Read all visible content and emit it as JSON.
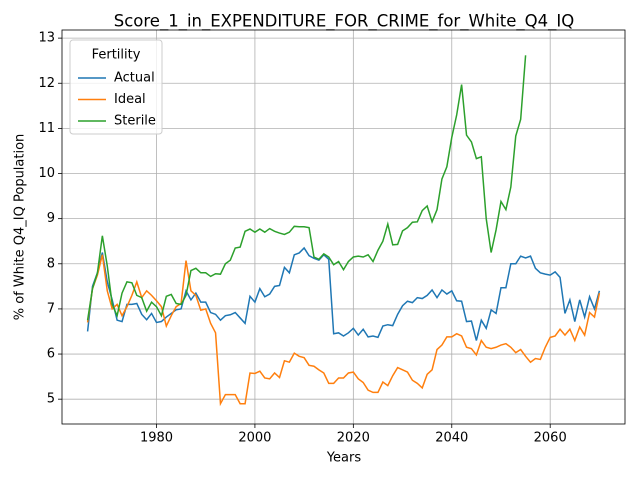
{
  "chart_data": {
    "type": "line",
    "title": "Score_1_in_EXPENDITURE_FOR_CRIME_for_White_Q4_IQ",
    "xlabel": "Years",
    "ylabel": "% of White Q4_IQ Population",
    "legend_title": "Fertility",
    "legend": "upper left",
    "grid": true,
    "xlim": [
      1960.8,
      2075.2
    ],
    "ylim": [
      4.45,
      13.18
    ],
    "xticks": [
      1980,
      2000,
      2020,
      2040,
      2060
    ],
    "yticks": [
      5,
      6,
      7,
      8,
      9,
      10,
      11,
      12,
      13
    ],
    "x": [
      1966,
      1967,
      1968,
      1969,
      1970,
      1971,
      1972,
      1973,
      1974,
      1975,
      1976,
      1977,
      1978,
      1979,
      1980,
      1981,
      1982,
      1983,
      1984,
      1985,
      1986,
      1987,
      1988,
      1989,
      1990,
      1991,
      1992,
      1993,
      1994,
      1995,
      1996,
      1997,
      1998,
      1999,
      2000,
      2001,
      2002,
      2003,
      2004,
      2005,
      2006,
      2007,
      2008,
      2009,
      2010,
      2011,
      2012,
      2013,
      2014,
      2015,
      2016,
      2017,
      2018,
      2019,
      2020,
      2021,
      2022,
      2023,
      2024,
      2025,
      2026,
      2027,
      2028,
      2029,
      2030,
      2031,
      2032,
      2033,
      2034,
      2035,
      2036,
      2037,
      2038,
      2039,
      2040,
      2041,
      2042,
      2043,
      2044,
      2045,
      2046,
      2047,
      2048,
      2049,
      2050,
      2051,
      2052,
      2053,
      2054,
      2055,
      2056,
      2057,
      2058,
      2059,
      2060,
      2061,
      2062,
      2063,
      2064,
      2065,
      2066,
      2067,
      2068,
      2069,
      2070
    ],
    "series": [
      {
        "name": "Actual",
        "color": "#1f77b4",
        "values": [
          6.5,
          7.5,
          7.8,
          8.25,
          7.6,
          7.2,
          6.75,
          6.72,
          7.1,
          7.1,
          7.12,
          6.88,
          6.76,
          6.9,
          6.7,
          6.72,
          6.82,
          6.9,
          6.98,
          7.0,
          7.4,
          7.2,
          7.35,
          7.15,
          7.15,
          6.92,
          6.88,
          6.75,
          6.85,
          6.87,
          6.92,
          6.8,
          6.68,
          7.28,
          7.15,
          7.45,
          7.27,
          7.33,
          7.5,
          7.52,
          7.92,
          7.8,
          8.2,
          8.24,
          8.35,
          8.18,
          8.12,
          8.08,
          8.2,
          8.1,
          6.45,
          6.47,
          6.4,
          6.47,
          6.57,
          6.42,
          6.55,
          6.38,
          6.4,
          6.37,
          6.62,
          6.65,
          6.63,
          6.88,
          7.07,
          7.17,
          7.14,
          7.25,
          7.23,
          7.3,
          7.42,
          7.25,
          7.42,
          7.33,
          7.4,
          7.18,
          7.17,
          6.72,
          6.73,
          6.3,
          6.75,
          6.57,
          6.98,
          6.9,
          7.47,
          7.47,
          8.0,
          8.0,
          8.17,
          8.13,
          8.17,
          7.9,
          7.8,
          7.77,
          7.75,
          7.82,
          7.7,
          6.9,
          7.2,
          6.72,
          7.2,
          6.82,
          7.27,
          7.0,
          7.4
        ]
      },
      {
        "name": "Ideal",
        "color": "#ff7f0e",
        "values": [
          6.7,
          7.45,
          7.75,
          8.2,
          7.4,
          7.0,
          7.1,
          6.85,
          7.05,
          7.3,
          7.6,
          7.25,
          7.4,
          7.3,
          7.18,
          7.05,
          6.62,
          6.85,
          7.05,
          7.12,
          8.07,
          7.4,
          7.3,
          6.97,
          7.0,
          6.68,
          6.47,
          4.9,
          5.1,
          5.1,
          5.1,
          4.9,
          4.9,
          5.58,
          5.57,
          5.62,
          5.47,
          5.45,
          5.58,
          5.48,
          5.85,
          5.82,
          6.02,
          5.95,
          5.92,
          5.75,
          5.73,
          5.65,
          5.58,
          5.35,
          5.35,
          5.47,
          5.47,
          5.58,
          5.6,
          5.45,
          5.37,
          5.2,
          5.15,
          5.15,
          5.38,
          5.3,
          5.52,
          5.7,
          5.65,
          5.6,
          5.42,
          5.35,
          5.25,
          5.55,
          5.65,
          6.1,
          6.2,
          6.38,
          6.38,
          6.45,
          6.4,
          6.15,
          6.12,
          5.98,
          6.3,
          6.15,
          6.12,
          6.15,
          6.2,
          6.23,
          6.15,
          6.03,
          6.1,
          5.95,
          5.82,
          5.9,
          5.88,
          6.15,
          6.37,
          6.4,
          6.55,
          6.42,
          6.55,
          6.3,
          6.6,
          6.42,
          6.92,
          6.82,
          7.35
        ]
      },
      {
        "name": "Sterile",
        "color": "#2ca02c",
        "values": [
          6.75,
          7.45,
          7.8,
          8.62,
          7.95,
          7.1,
          6.85,
          7.35,
          7.6,
          7.58,
          7.3,
          7.25,
          6.95,
          7.15,
          7.05,
          6.85,
          7.28,
          7.32,
          7.12,
          7.1,
          7.3,
          7.85,
          7.9,
          7.8,
          7.8,
          7.72,
          7.78,
          7.77,
          8.0,
          8.08,
          8.35,
          8.37,
          8.72,
          8.77,
          8.7,
          8.77,
          8.7,
          8.78,
          8.72,
          8.68,
          8.65,
          8.7,
          8.83,
          8.82,
          8.82,
          8.8,
          8.15,
          8.1,
          8.22,
          8.15,
          7.98,
          8.05,
          7.87,
          8.05,
          8.15,
          8.17,
          8.15,
          8.2,
          8.05,
          8.3,
          8.5,
          8.88,
          8.42,
          8.43,
          8.73,
          8.8,
          8.92,
          8.93,
          9.18,
          9.28,
          8.93,
          9.2,
          9.88,
          10.15,
          10.8,
          11.3,
          11.97,
          10.85,
          10.7,
          10.33,
          10.37,
          9.0,
          8.25,
          8.75,
          9.38,
          9.2,
          9.7,
          10.83,
          11.2,
          12.62,
          null,
          null,
          null,
          null,
          null,
          null,
          null,
          null,
          null,
          null,
          null,
          null,
          null,
          null,
          null
        ]
      }
    ]
  }
}
